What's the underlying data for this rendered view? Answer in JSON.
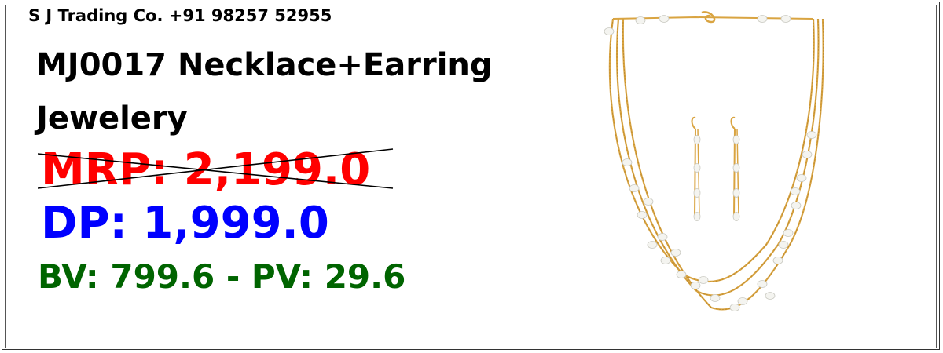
{
  "company_line": "S J Trading Co. +91 98257 52955",
  "product": {
    "title_line1": "MJ0017 Necklace+Earring",
    "title_line2": "Jewelery"
  },
  "pricing": {
    "mrp_text": "MRP: 2,199.0",
    "dp_text": "DP: 1,999.0",
    "bv_pv_text": "BV: 799.6  -  PV: 29.6"
  },
  "colors": {
    "mrp": "#ff0000",
    "dp": "#0000ff",
    "bv_pv": "#006400",
    "gold": "#d9a441",
    "pearl": "#f4f4f0"
  },
  "image": {
    "icon": "necklace-earring-image"
  }
}
